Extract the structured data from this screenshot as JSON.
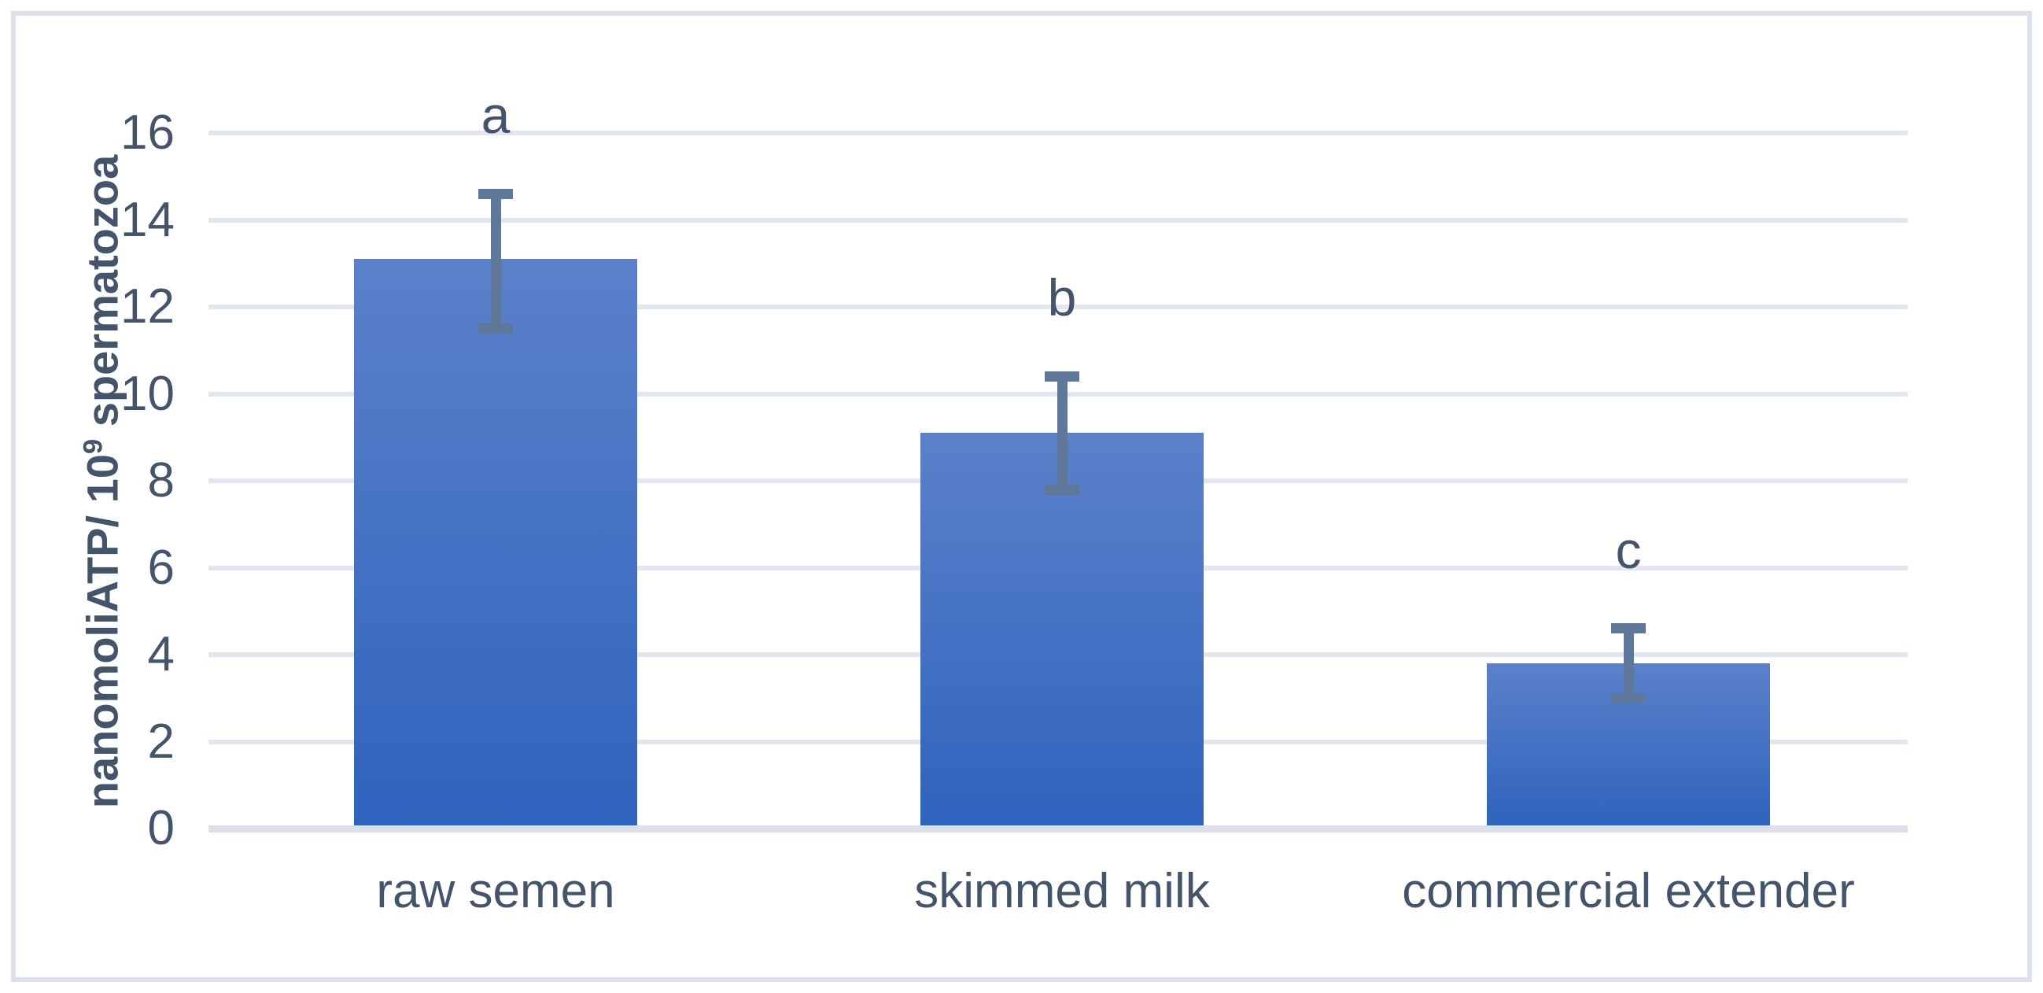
{
  "chart_data": {
    "type": "bar",
    "title": "",
    "categories": [
      "raw semen",
      "skimmed milk",
      "commercial extender"
    ],
    "values": [
      13.1,
      9.1,
      3.8
    ],
    "error_upper": [
      14.6,
      10.4,
      4.6
    ],
    "error_lower": [
      11.5,
      7.8,
      3.0
    ],
    "significance_letters": [
      "a",
      "b",
      "c"
    ],
    "ylabel": "nanomoliATP/ 10⁹ spermatozoa",
    "ylabel_parts": {
      "prefix": "nanomoliATP/ 10",
      "superscript": "9",
      "suffix": " spermatozoa"
    },
    "xlabel": "",
    "ylim": [
      0,
      16
    ],
    "yticks": [
      0,
      2,
      4,
      6,
      8,
      10,
      12,
      14,
      16
    ],
    "grid": "horizontal",
    "legend": "none",
    "colors": {
      "bar_gradient_top": "#5b81ca",
      "bar_gradient_bottom": "#2f63bd",
      "error_bar": "#5f7799",
      "text": "#44546a",
      "gridline": "#e2e6ee",
      "axis_line": "#dce0ea",
      "frame_border": "#dde1ea"
    }
  }
}
